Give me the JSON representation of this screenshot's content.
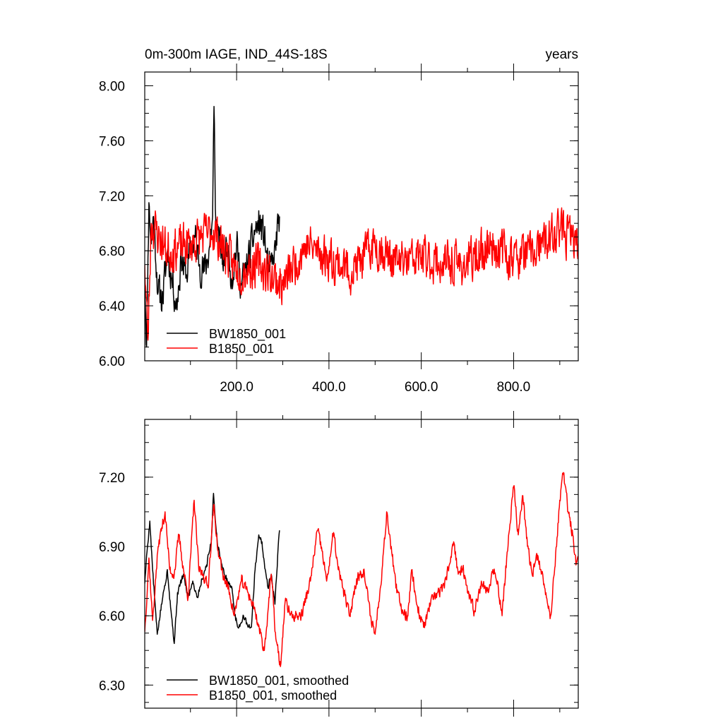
{
  "chart_data": [
    {
      "type": "line",
      "title_left": "0m-300m IAGE, IND_44S-18S",
      "title_right": "years",
      "xlim": [
        1,
        940
      ],
      "ylim": [
        6.0,
        8.1
      ],
      "x_ticks": [
        200,
        400,
        600,
        800
      ],
      "x_tick_labels": [
        "200.0",
        "400.0",
        "600.0",
        "800.0"
      ],
      "y_ticks": [
        6.0,
        6.4,
        6.8,
        7.2,
        7.6,
        8.0
      ],
      "y_tick_labels": [
        "6.00",
        "6.40",
        "6.80",
        "7.20",
        "7.60",
        "8.00"
      ],
      "legend_placement": "bottom-left",
      "series": [
        {
          "name": "BW1850_001",
          "color": "#000000",
          "x_start": 1,
          "x_end": 293,
          "anchors": [
            [
              1,
              6.65
            ],
            [
              5,
              6.1
            ],
            [
              10,
              7.15
            ],
            [
              15,
              6.85
            ],
            [
              20,
              7.05
            ],
            [
              30,
              6.5
            ],
            [
              40,
              6.45
            ],
            [
              50,
              6.8
            ],
            [
              60,
              6.6
            ],
            [
              70,
              6.4
            ],
            [
              80,
              6.75
            ],
            [
              90,
              6.6
            ],
            [
              100,
              6.8
            ],
            [
              110,
              6.9
            ],
            [
              120,
              6.7
            ],
            [
              130,
              6.65
            ],
            [
              140,
              6.8
            ],
            [
              148,
              7.05
            ],
            [
              151,
              7.85
            ],
            [
              155,
              7.0
            ],
            [
              160,
              6.95
            ],
            [
              170,
              6.7
            ],
            [
              180,
              6.85
            ],
            [
              190,
              6.6
            ],
            [
              200,
              6.85
            ],
            [
              210,
              6.55
            ],
            [
              220,
              6.65
            ],
            [
              230,
              6.8
            ],
            [
              240,
              6.95
            ],
            [
              250,
              7.0
            ],
            [
              260,
              6.9
            ],
            [
              270,
              6.65
            ],
            [
              280,
              6.7
            ],
            [
              290,
              7.0
            ],
            [
              293,
              7.05
            ]
          ],
          "noise": 0.18,
          "seed": 11
        },
        {
          "name": "B1850_001",
          "color": "#ff0000",
          "x_start": 1,
          "x_end": 940,
          "anchors": [
            [
              1,
              6.7
            ],
            [
              8,
              6.15
            ],
            [
              15,
              7.0
            ],
            [
              50,
              6.8
            ],
            [
              100,
              6.85
            ],
            [
              150,
              6.95
            ],
            [
              200,
              6.65
            ],
            [
              250,
              6.7
            ],
            [
              300,
              6.55
            ],
            [
              350,
              6.85
            ],
            [
              400,
              6.75
            ],
            [
              450,
              6.65
            ],
            [
              500,
              6.85
            ],
            [
              550,
              6.7
            ],
            [
              600,
              6.75
            ],
            [
              650,
              6.7
            ],
            [
              700,
              6.7
            ],
            [
              750,
              6.85
            ],
            [
              800,
              6.75
            ],
            [
              850,
              6.8
            ],
            [
              900,
              6.95
            ],
            [
              940,
              6.85
            ]
          ],
          "noise": 0.22,
          "seed": 23
        }
      ]
    },
    {
      "type": "line",
      "xlim": [
        1,
        940
      ],
      "ylim": [
        6.2,
        7.45
      ],
      "x_ticks": [
        200,
        400,
        600,
        800
      ],
      "y_ticks": [
        6.3,
        6.6,
        6.9,
        7.2
      ],
      "y_tick_labels": [
        "6.30",
        "6.60",
        "6.90",
        "7.20"
      ],
      "legend_placement": "bottom-left",
      "series": [
        {
          "name": "BW1850_001, smoothed",
          "color": "#000000",
          "x_start": 1,
          "x_end": 293,
          "anchors": [
            [
              1,
              6.74
            ],
            [
              6,
              6.88
            ],
            [
              12,
              7.01
            ],
            [
              18,
              6.8
            ],
            [
              28,
              6.52
            ],
            [
              40,
              6.68
            ],
            [
              50,
              6.8
            ],
            [
              58,
              6.62
            ],
            [
              65,
              6.48
            ],
            [
              72,
              6.7
            ],
            [
              85,
              6.78
            ],
            [
              95,
              6.68
            ],
            [
              105,
              6.75
            ],
            [
              115,
              6.68
            ],
            [
              125,
              6.76
            ],
            [
              135,
              6.82
            ],
            [
              145,
              6.92
            ],
            [
              150,
              7.13
            ],
            [
              158,
              6.92
            ],
            [
              170,
              6.8
            ],
            [
              180,
              6.75
            ],
            [
              190,
              6.72
            ],
            [
              198,
              6.58
            ],
            [
              205,
              6.55
            ],
            [
              215,
              6.6
            ],
            [
              225,
              6.55
            ],
            [
              232,
              6.55
            ],
            [
              240,
              6.8
            ],
            [
              248,
              6.95
            ],
            [
              255,
              6.92
            ],
            [
              262,
              6.8
            ],
            [
              268,
              6.72
            ],
            [
              275,
              6.78
            ],
            [
              283,
              6.65
            ],
            [
              290,
              6.9
            ],
            [
              293,
              6.97
            ]
          ],
          "noise": 0.02,
          "seed": 5
        },
        {
          "name": "B1850_001, smoothed",
          "color": "#ff0000",
          "x_start": 1,
          "x_end": 940,
          "anchors": [
            [
              1,
              6.53
            ],
            [
              10,
              6.85
            ],
            [
              18,
              6.58
            ],
            [
              30,
              6.9
            ],
            [
              45,
              7.05
            ],
            [
              55,
              6.8
            ],
            [
              65,
              6.78
            ],
            [
              75,
              6.95
            ],
            [
              85,
              6.8
            ],
            [
              95,
              6.68
            ],
            [
              108,
              7.1
            ],
            [
              118,
              6.8
            ],
            [
              128,
              6.78
            ],
            [
              138,
              6.72
            ],
            [
              150,
              7.08
            ],
            [
              160,
              6.88
            ],
            [
              170,
              6.78
            ],
            [
              185,
              6.7
            ],
            [
              195,
              6.6
            ],
            [
              210,
              6.75
            ],
            [
              225,
              6.7
            ],
            [
              240,
              6.62
            ],
            [
              260,
              6.45
            ],
            [
              275,
              6.78
            ],
            [
              285,
              6.5
            ],
            [
              295,
              6.38
            ],
            [
              305,
              6.66
            ],
            [
              320,
              6.6
            ],
            [
              340,
              6.6
            ],
            [
              360,
              6.75
            ],
            [
              375,
              6.97
            ],
            [
              385,
              6.88
            ],
            [
              395,
              6.75
            ],
            [
              410,
              6.96
            ],
            [
              420,
              6.8
            ],
            [
              430,
              6.72
            ],
            [
              445,
              6.6
            ],
            [
              460,
              6.76
            ],
            [
              475,
              6.8
            ],
            [
              490,
              6.6
            ],
            [
              500,
              6.52
            ],
            [
              515,
              6.8
            ],
            [
              525,
              7.05
            ],
            [
              535,
              6.9
            ],
            [
              545,
              6.72
            ],
            [
              560,
              6.62
            ],
            [
              570,
              6.6
            ],
            [
              580,
              6.8
            ],
            [
              590,
              6.65
            ],
            [
              605,
              6.55
            ],
            [
              620,
              6.65
            ],
            [
              635,
              6.7
            ],
            [
              650,
              6.72
            ],
            [
              670,
              6.92
            ],
            [
              680,
              6.78
            ],
            [
              690,
              6.8
            ],
            [
              700,
              6.7
            ],
            [
              715,
              6.62
            ],
            [
              730,
              6.75
            ],
            [
              745,
              6.7
            ],
            [
              755,
              6.8
            ],
            [
              765,
              6.75
            ],
            [
              775,
              6.6
            ],
            [
              785,
              6.85
            ],
            [
              800,
              7.16
            ],
            [
              810,
              6.95
            ],
            [
              820,
              7.12
            ],
            [
              830,
              6.9
            ],
            [
              840,
              6.78
            ],
            [
              850,
              6.87
            ],
            [
              860,
              6.78
            ],
            [
              870,
              6.7
            ],
            [
              880,
              6.6
            ],
            [
              888,
              6.78
            ],
            [
              900,
              7.1
            ],
            [
              908,
              7.22
            ],
            [
              918,
              7.05
            ],
            [
              928,
              6.95
            ],
            [
              935,
              6.82
            ],
            [
              940,
              6.85
            ]
          ],
          "noise": 0.035,
          "seed": 37
        }
      ]
    }
  ]
}
